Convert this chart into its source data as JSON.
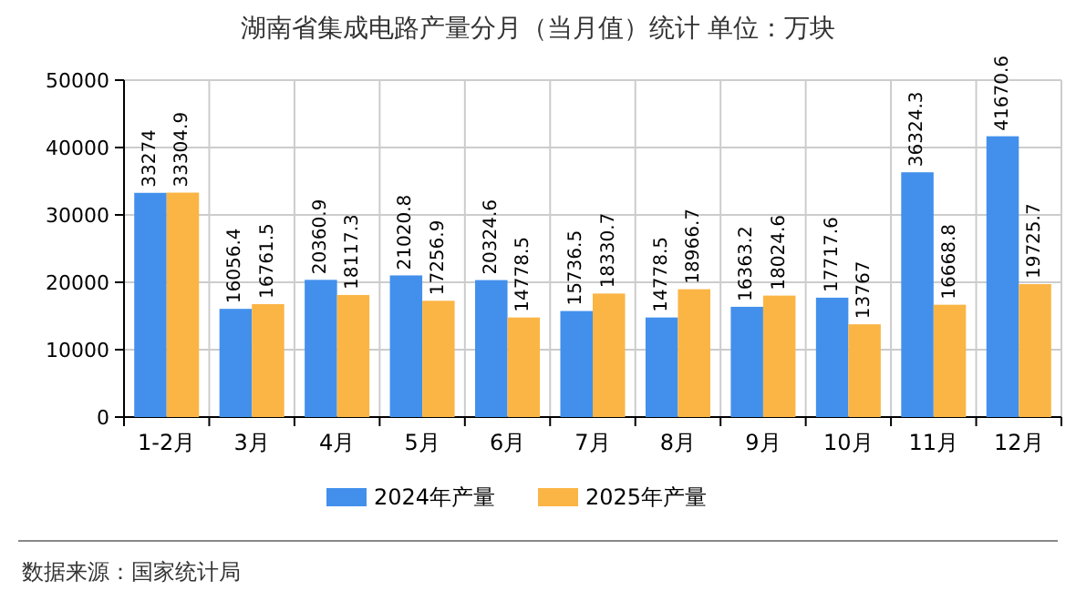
{
  "chart_data": {
    "type": "bar",
    "title": "湖南省集成电路产量分月（当月值）统计 单位：万块",
    "categories": [
      "1-2月",
      "3月",
      "4月",
      "5月",
      "6月",
      "7月",
      "8月",
      "9月",
      "10月",
      "11月",
      "12月"
    ],
    "series": [
      {
        "name": "2024年产量",
        "color": "#4290ec",
        "values": [
          33274,
          16056.4,
          20360.9,
          21020.8,
          20324.6,
          15736.5,
          14778.5,
          16363.2,
          17717.6,
          36324.3,
          41670.6
        ]
      },
      {
        "name": "2025年产量",
        "color": "#fbb545",
        "values": [
          33304.9,
          16761.5,
          18117.3,
          17256.9,
          14778.5,
          18330.7,
          18966.7,
          18024.6,
          13767,
          16668.8,
          19725.7
        ]
      }
    ],
    "ylim": [
      0,
      50000
    ],
    "yticks": [
      0,
      10000,
      20000,
      30000,
      40000,
      50000
    ],
    "grid": true,
    "legend": "bottom",
    "data_labels": true,
    "annotations": [
      "数据来源：国家统计局"
    ]
  }
}
